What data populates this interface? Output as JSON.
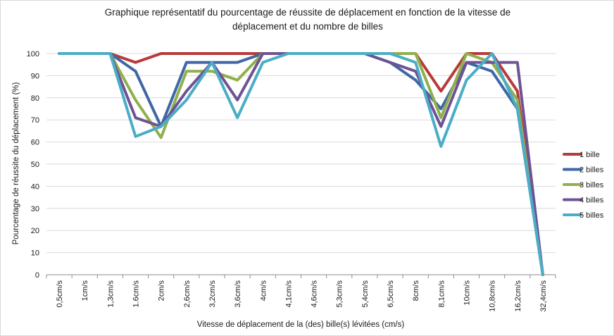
{
  "chart_data": {
    "type": "line",
    "title_lines": [
      "Graphique représentatif du pourcentage de réussite de déplacement en fonction de la vitesse de",
      "déplacement et du nombre de billes"
    ],
    "xlabel": "Vitesse de déplacement de la (des) bille(s) lévitées (cm/s)",
    "ylabel": "Pourcentage de réussite du déplacement (%)",
    "ylim": [
      0,
      100
    ],
    "yticks": [
      0,
      10,
      20,
      30,
      40,
      50,
      60,
      70,
      80,
      90,
      100
    ],
    "grid": true,
    "legend_position": "right",
    "categories": [
      "0,5cm/s",
      "1cm/s",
      "1,3cm/s",
      "1.6cm/s",
      "2cm/s",
      "2,6cm/s",
      "3,2cm/s",
      "3,6cm/s",
      "4cm/s",
      "4,1cm/s",
      "4,6cm/s",
      "5,3cm/s",
      "5,4cm/s",
      "6,5cm/s",
      "8cm/s",
      "8,1cm/s",
      "10cm/s",
      "10,8cm/s",
      "16,2cm/s",
      "32,4cm/s"
    ],
    "series": [
      {
        "name": "1 bille",
        "color": "#b83a3a",
        "values": [
          100,
          100,
          100,
          96,
          100,
          100,
          100,
          100,
          100,
          100,
          100,
          100,
          100,
          100,
          100,
          83,
          100,
          100,
          83,
          0
        ]
      },
      {
        "name": "2 billes",
        "color": "#3f67a6",
        "values": [
          100,
          100,
          100,
          92,
          67,
          96,
          96,
          96,
          100,
          100,
          100,
          100,
          100,
          96,
          88,
          75,
          96,
          92,
          75,
          0
        ]
      },
      {
        "name": "3 billes",
        "color": "#8fb04c",
        "values": [
          100,
          100,
          100,
          79,
          62,
          92,
          92,
          88,
          100,
          100,
          100,
          100,
          100,
          100,
          100,
          71,
          100,
          96,
          79,
          0
        ]
      },
      {
        "name": "4 billes",
        "color": "#6e5394",
        "values": [
          100,
          100,
          100,
          71,
          67,
          83,
          96,
          79,
          100,
          100,
          100,
          100,
          100,
          96,
          92,
          67,
          96,
          96,
          96,
          0
        ]
      },
      {
        "name": "5 billes",
        "color": "#4badc6",
        "values": [
          100,
          100,
          100,
          62.5,
          67,
          79,
          96,
          71,
          96,
          100,
          100,
          100,
          100,
          100,
          96,
          58,
          88,
          100,
          75,
          0
        ]
      }
    ]
  }
}
